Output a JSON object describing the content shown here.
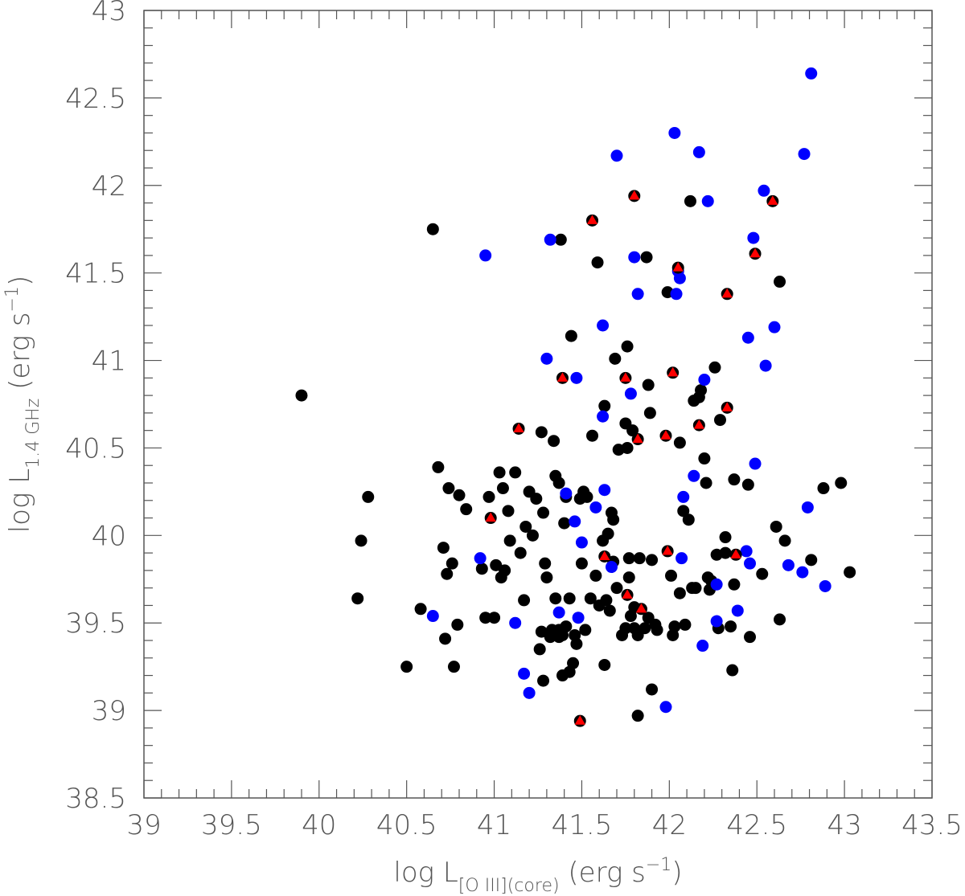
{
  "chart_data": {
    "type": "scatter",
    "xlabel": {
      "main": "log L",
      "sub": "[O III](core)",
      "unit_pre": " (erg s",
      "sup": "−1",
      "unit_post": ")"
    },
    "ylabel": {
      "main": "log L",
      "sub": "1.4 GHz",
      "unit_pre": " (erg s",
      "sup": "−1",
      "unit_post": ")"
    },
    "xlim": [
      39,
      43.5
    ],
    "ylim": [
      38.5,
      43
    ],
    "xticks": [
      "39",
      "39.5",
      "40",
      "40.5",
      "41",
      "41.5",
      "42",
      "42.5",
      "43",
      "43.5"
    ],
    "yticks": [
      "38.5",
      "39",
      "39.5",
      "40",
      "40.5",
      "41",
      "41.5",
      "42",
      "42.5",
      "43"
    ],
    "grid": false,
    "series": [
      {
        "marker": "circle",
        "color": "#000000",
        "points": [
          [
            39.9,
            40.8
          ],
          [
            40.22,
            39.64
          ],
          [
            40.24,
            39.97
          ],
          [
            40.28,
            40.22
          ],
          [
            40.5,
            39.25
          ],
          [
            40.58,
            39.58
          ],
          [
            40.65,
            41.75
          ],
          [
            40.68,
            40.39
          ],
          [
            40.71,
            39.93
          ],
          [
            40.72,
            39.41
          ],
          [
            40.73,
            39.78
          ],
          [
            40.74,
            40.27
          ],
          [
            40.76,
            39.84
          ],
          [
            40.77,
            39.25
          ],
          [
            40.79,
            39.49
          ],
          [
            40.8,
            40.23
          ],
          [
            40.84,
            40.15
          ],
          [
            40.93,
            39.81
          ],
          [
            40.95,
            39.53
          ],
          [
            40.97,
            40.22
          ],
          [
            41.0,
            39.53
          ],
          [
            41.01,
            39.83
          ],
          [
            41.03,
            40.36
          ],
          [
            41.04,
            39.76
          ],
          [
            41.05,
            40.27
          ],
          [
            41.06,
            39.8
          ],
          [
            41.08,
            40.14
          ],
          [
            41.09,
            39.97
          ],
          [
            41.12,
            40.36
          ],
          [
            41.15,
            39.9
          ],
          [
            41.17,
            39.63
          ],
          [
            41.18,
            40.05
          ],
          [
            41.2,
            40.25
          ],
          [
            41.22,
            40.0
          ],
          [
            41.24,
            40.21
          ],
          [
            41.26,
            39.35
          ],
          [
            41.27,
            40.59
          ],
          [
            41.27,
            39.45
          ],
          [
            41.28,
            39.17
          ],
          [
            41.28,
            40.13
          ],
          [
            41.29,
            39.84
          ],
          [
            41.3,
            39.76
          ],
          [
            41.32,
            39.42
          ],
          [
            41.33,
            39.46
          ],
          [
            41.34,
            40.54
          ],
          [
            41.35,
            39.64
          ],
          [
            41.35,
            40.34
          ],
          [
            41.37,
            39.46
          ],
          [
            41.37,
            39.42
          ],
          [
            41.37,
            40.3
          ],
          [
            41.38,
            41.69
          ],
          [
            41.39,
            39.2
          ],
          [
            41.39,
            39.43
          ],
          [
            41.4,
            40.07
          ],
          [
            41.41,
            39.48
          ],
          [
            41.41,
            40.22
          ],
          [
            41.43,
            39.22
          ],
          [
            41.43,
            39.64
          ],
          [
            41.44,
            41.14
          ],
          [
            41.45,
            39.27
          ],
          [
            41.46,
            39.43
          ],
          [
            41.47,
            39.38
          ],
          [
            41.49,
            40.21
          ],
          [
            41.5,
            39.84
          ],
          [
            41.51,
            40.25
          ],
          [
            41.52,
            39.46
          ],
          [
            41.53,
            40.22
          ],
          [
            41.55,
            39.64
          ],
          [
            41.56,
            40.57
          ],
          [
            41.58,
            39.77
          ],
          [
            41.59,
            41.56
          ],
          [
            41.6,
            39.6
          ],
          [
            41.62,
            39.97
          ],
          [
            41.63,
            39.26
          ],
          [
            41.63,
            40.74
          ],
          [
            41.64,
            39.63
          ],
          [
            41.65,
            40.01
          ],
          [
            41.66,
            39.57
          ],
          [
            41.67,
            40.13
          ],
          [
            41.68,
            40.09
          ],
          [
            41.68,
            39.85
          ],
          [
            41.69,
            41.01
          ],
          [
            41.7,
            39.7
          ],
          [
            41.71,
            40.49
          ],
          [
            41.73,
            39.43
          ],
          [
            41.75,
            40.64
          ],
          [
            41.75,
            39.47
          ],
          [
            41.76,
            41.08
          ],
          [
            41.76,
            40.5
          ],
          [
            41.77,
            39.76
          ],
          [
            41.77,
            39.87
          ],
          [
            41.78,
            39.54
          ],
          [
            41.79,
            40.6
          ],
          [
            41.8,
            39.59
          ],
          [
            41.8,
            39.47
          ],
          [
            41.82,
            38.97
          ],
          [
            41.82,
            39.43
          ],
          [
            41.83,
            39.87
          ],
          [
            41.86,
            39.47
          ],
          [
            41.87,
            41.59
          ],
          [
            41.88,
            40.86
          ],
          [
            41.88,
            39.53
          ],
          [
            41.89,
            40.7
          ],
          [
            41.9,
            39.86
          ],
          [
            41.9,
            39.12
          ],
          [
            41.92,
            39.49
          ],
          [
            41.93,
            39.46
          ],
          [
            41.99,
            41.39
          ],
          [
            42.01,
            39.77
          ],
          [
            42.02,
            39.43
          ],
          [
            42.03,
            39.48
          ],
          [
            42.06,
            40.53
          ],
          [
            42.06,
            39.67
          ],
          [
            42.08,
            40.14
          ],
          [
            42.09,
            39.49
          ],
          [
            42.11,
            40.09
          ],
          [
            42.12,
            41.91
          ],
          [
            42.13,
            39.7
          ],
          [
            42.14,
            40.77
          ],
          [
            42.15,
            39.7
          ],
          [
            42.17,
            40.79
          ],
          [
            42.18,
            40.83
          ],
          [
            42.2,
            40.44
          ],
          [
            42.21,
            40.3
          ],
          [
            42.22,
            39.76
          ],
          [
            42.23,
            39.69
          ],
          [
            42.24,
            39.74
          ],
          [
            42.26,
            40.96
          ],
          [
            42.27,
            39.89
          ],
          [
            42.28,
            39.47
          ],
          [
            42.29,
            40.66
          ],
          [
            42.32,
            39.99
          ],
          [
            42.32,
            39.9
          ],
          [
            42.35,
            39.48
          ],
          [
            42.36,
            39.23
          ],
          [
            42.37,
            40.32
          ],
          [
            42.37,
            39.72
          ],
          [
            42.45,
            40.29
          ],
          [
            42.46,
            39.42
          ],
          [
            42.53,
            39.78
          ],
          [
            42.61,
            40.05
          ],
          [
            42.63,
            39.52
          ],
          [
            42.63,
            41.45
          ],
          [
            42.66,
            39.97
          ],
          [
            42.81,
            39.86
          ],
          [
            42.88,
            40.27
          ],
          [
            42.98,
            40.3
          ],
          [
            43.03,
            39.79
          ]
        ]
      },
      {
        "marker": "circle",
        "color": "#0000ff",
        "points": [
          [
            40.65,
            39.54
          ],
          [
            40.92,
            39.87
          ],
          [
            40.95,
            41.6
          ],
          [
            41.12,
            39.5
          ],
          [
            41.17,
            39.21
          ],
          [
            41.2,
            39.1
          ],
          [
            41.3,
            41.01
          ],
          [
            41.32,
            41.69
          ],
          [
            41.37,
            39.56
          ],
          [
            41.41,
            40.24
          ],
          [
            41.46,
            40.08
          ],
          [
            41.47,
            40.9
          ],
          [
            41.48,
            39.53
          ],
          [
            41.5,
            39.96
          ],
          [
            41.58,
            40.16
          ],
          [
            41.62,
            40.68
          ],
          [
            41.62,
            41.2
          ],
          [
            41.63,
            40.26
          ],
          [
            41.67,
            39.82
          ],
          [
            41.7,
            42.17
          ],
          [
            41.78,
            40.81
          ],
          [
            41.8,
            41.59
          ],
          [
            41.82,
            41.38
          ],
          [
            41.98,
            39.02
          ],
          [
            42.03,
            42.3
          ],
          [
            42.04,
            41.38
          ],
          [
            42.05,
            41.51
          ],
          [
            42.06,
            41.47
          ],
          [
            42.07,
            39.87
          ],
          [
            42.08,
            40.22
          ],
          [
            42.14,
            40.34
          ],
          [
            42.17,
            42.19
          ],
          [
            42.19,
            39.37
          ],
          [
            42.2,
            40.89
          ],
          [
            42.22,
            41.91
          ],
          [
            42.27,
            39.72
          ],
          [
            42.27,
            39.51
          ],
          [
            42.39,
            39.57
          ],
          [
            42.44,
            39.91
          ],
          [
            42.45,
            41.13
          ],
          [
            42.46,
            39.84
          ],
          [
            42.48,
            41.7
          ],
          [
            42.49,
            40.41
          ],
          [
            42.54,
            41.97
          ],
          [
            42.55,
            40.97
          ],
          [
            42.6,
            41.19
          ],
          [
            42.68,
            39.83
          ],
          [
            42.76,
            39.79
          ],
          [
            42.77,
            42.18
          ],
          [
            42.79,
            40.16
          ],
          [
            42.81,
            42.64
          ],
          [
            42.89,
            39.71
          ]
        ]
      },
      {
        "marker": "triangle",
        "color": "#ff0000",
        "points": [
          [
            40.98,
            40.1
          ],
          [
            41.14,
            40.61
          ],
          [
            41.39,
            40.9
          ],
          [
            41.49,
            38.94
          ],
          [
            41.56,
            41.8
          ],
          [
            41.63,
            39.88
          ],
          [
            41.75,
            40.9
          ],
          [
            41.76,
            39.66
          ],
          [
            41.8,
            41.94
          ],
          [
            41.82,
            40.55
          ],
          [
            41.84,
            39.58
          ],
          [
            41.98,
            40.57
          ],
          [
            41.99,
            39.91
          ],
          [
            42.02,
            40.93
          ],
          [
            42.05,
            41.53
          ],
          [
            42.17,
            40.63
          ],
          [
            42.33,
            40.73
          ],
          [
            42.33,
            41.38
          ],
          [
            42.38,
            39.89
          ],
          [
            42.49,
            41.61
          ],
          [
            42.59,
            41.91
          ]
        ]
      }
    ]
  }
}
